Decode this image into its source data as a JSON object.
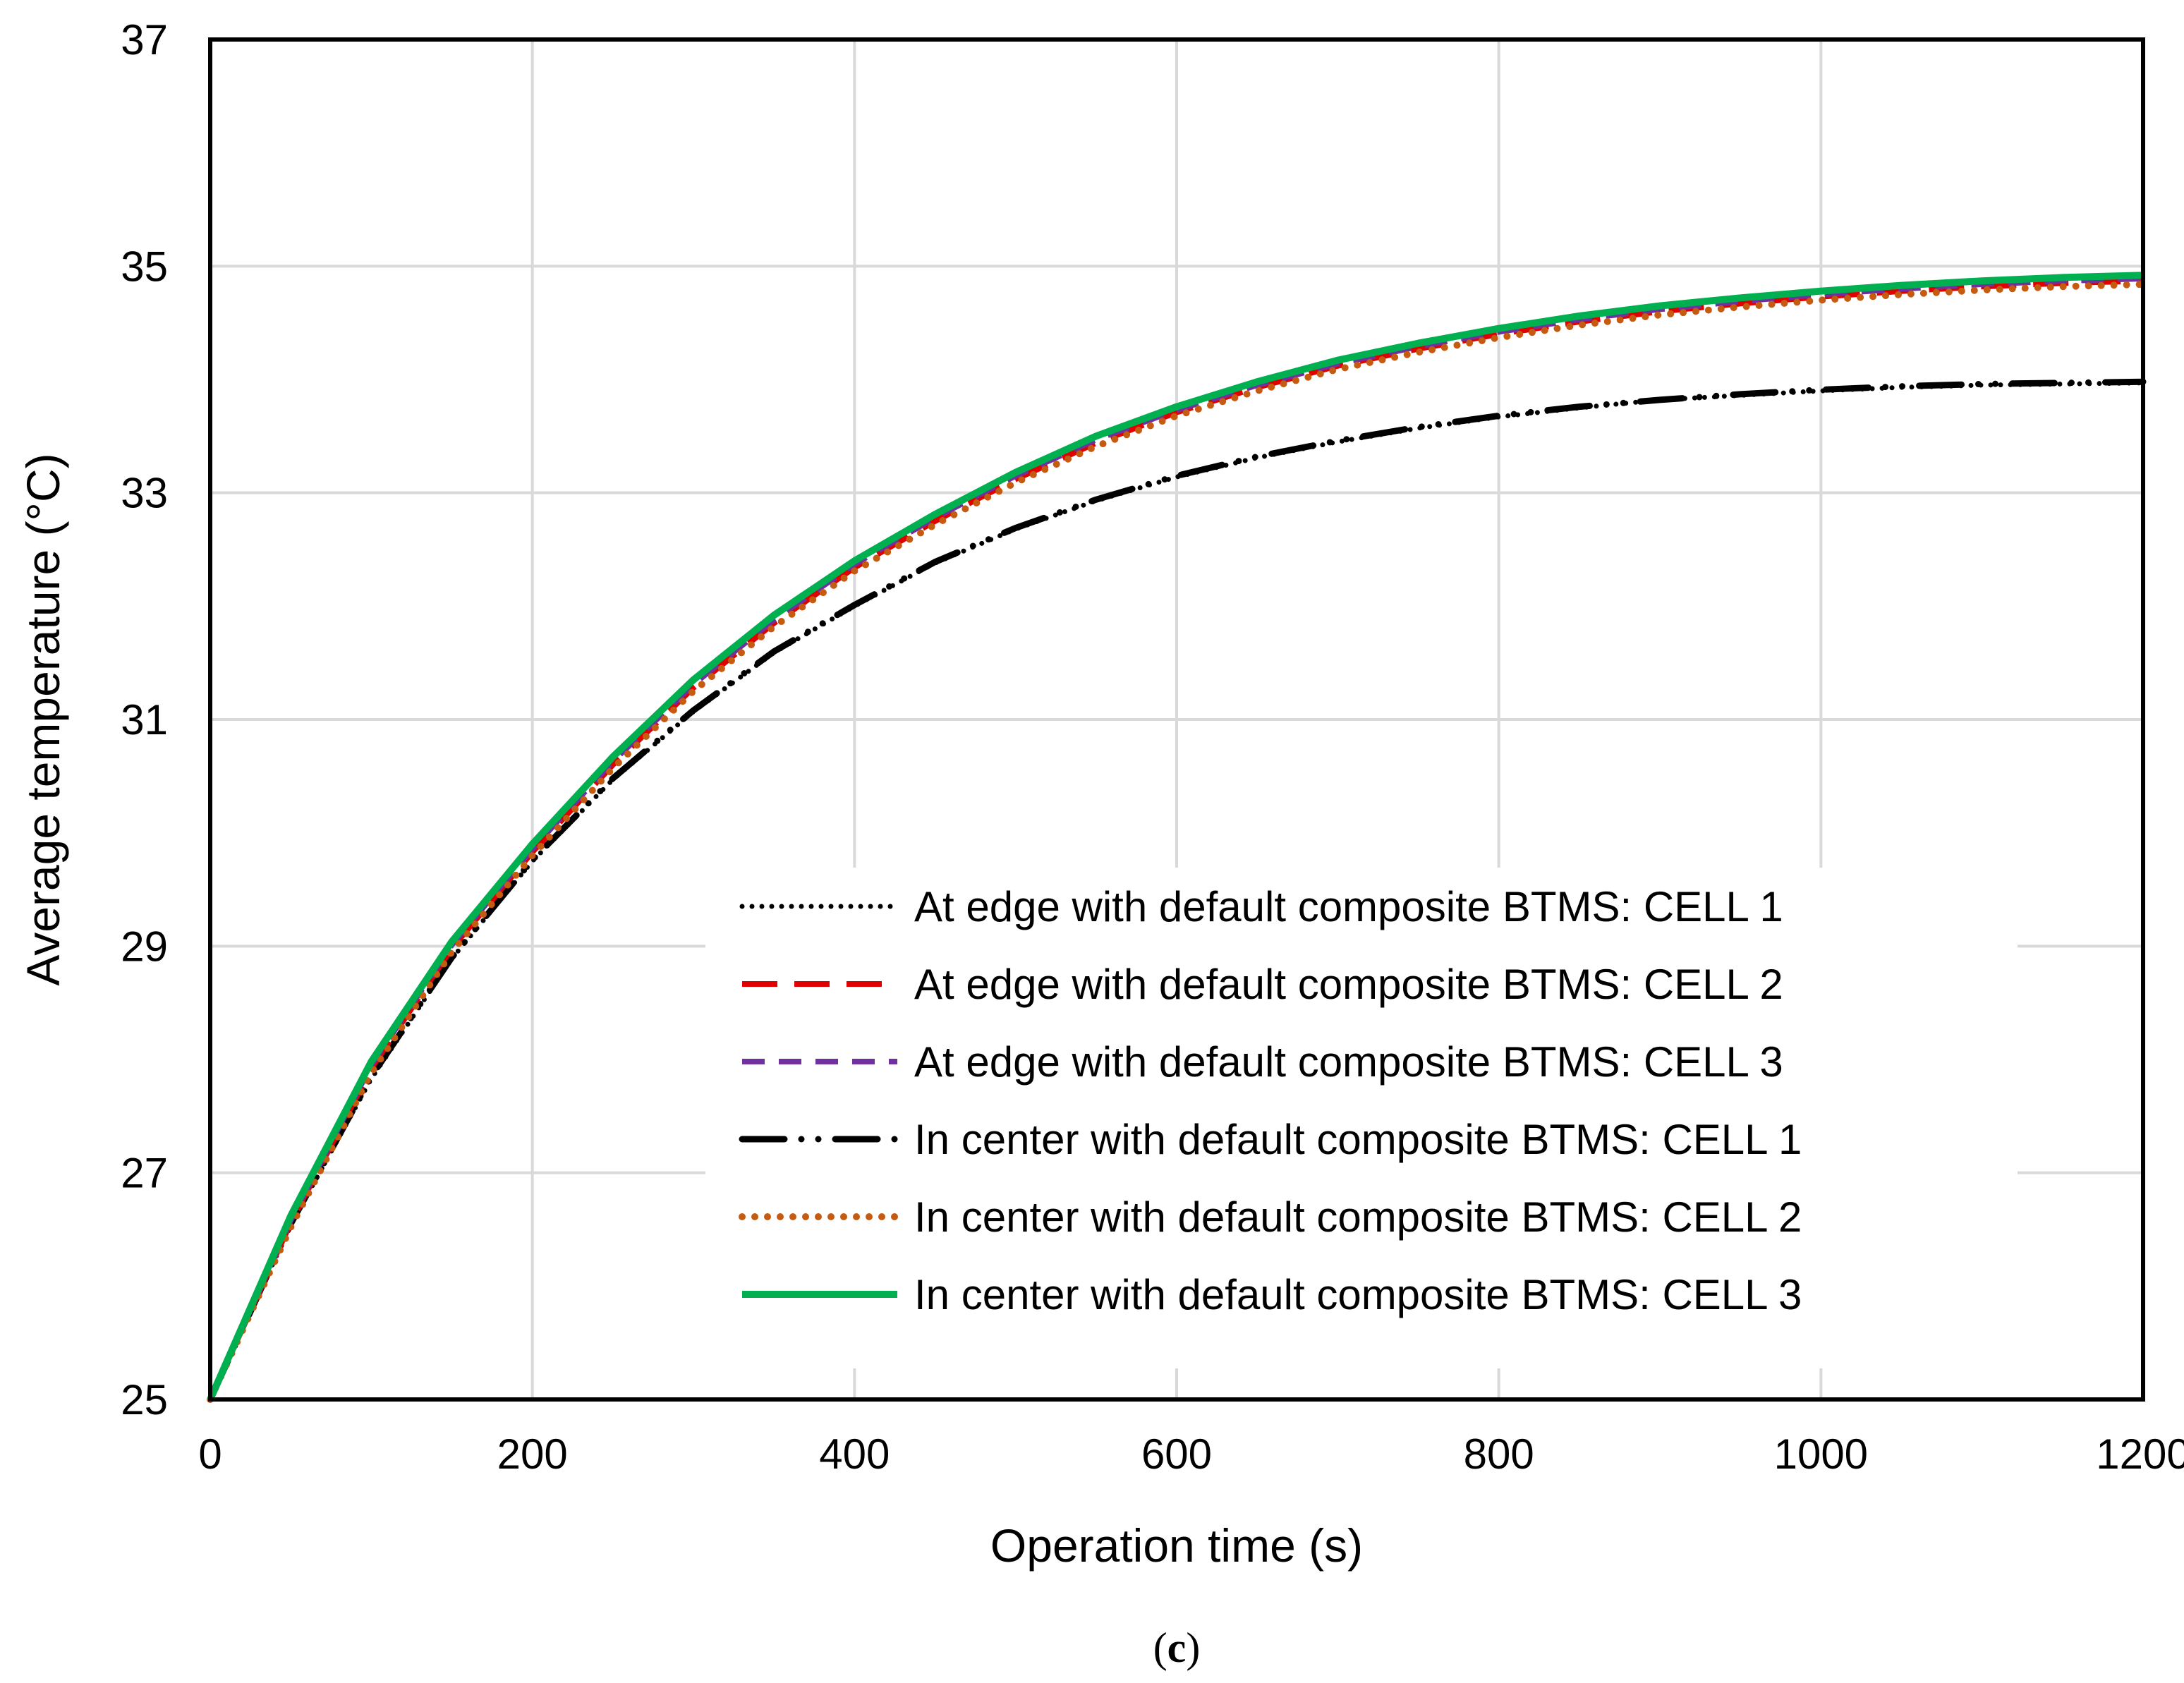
{
  "chart_data": {
    "type": "line",
    "xlabel": "Operation time (s)",
    "ylabel": "Average temperature (°C)",
    "xlim": [
      0,
      1200
    ],
    "ylim": [
      25,
      37
    ],
    "xticks": [
      0,
      200,
      400,
      600,
      800,
      1000,
      1200
    ],
    "yticks": [
      25,
      27,
      29,
      31,
      33,
      35,
      37
    ],
    "grid": true,
    "legend_position": "bottom-right",
    "caption_open": "(",
    "caption_letter": "c",
    "caption_close": ")",
    "series": [
      {
        "name": "At edge with default composite BTMS: CELL 1",
        "color": "#000000",
        "style": "dotted",
        "x": [
          0,
          50,
          100,
          150,
          200,
          250,
          300,
          350,
          400,
          450,
          500,
          550,
          600,
          650,
          700,
          750,
          800,
          850,
          900,
          950,
          1000,
          1050,
          1100,
          1150,
          1200
        ],
        "y": [
          25.0,
          26.54,
          27.83,
          28.89,
          29.75,
          30.47,
          31.07,
          31.59,
          32.0,
          32.38,
          32.68,
          32.93,
          33.14,
          33.31,
          33.45,
          33.57,
          33.67,
          33.75,
          33.82,
          33.86,
          33.9,
          33.93,
          33.95,
          33.96,
          33.97
        ]
      },
      {
        "name": "At edge with default composite BTMS: CELL 2",
        "color": "#e00000",
        "style": "long-dash",
        "x": [
          0,
          50,
          100,
          150,
          200,
          250,
          300,
          350,
          400,
          450,
          500,
          550,
          600,
          650,
          700,
          750,
          800,
          850,
          900,
          950,
          1000,
          1050,
          1100,
          1150,
          1200
        ],
        "y": [
          25.0,
          26.56,
          27.92,
          28.98,
          29.83,
          30.6,
          31.28,
          31.85,
          32.34,
          32.75,
          33.12,
          33.44,
          33.71,
          33.93,
          34.12,
          34.27,
          34.4,
          34.51,
          34.6,
          34.67,
          34.73,
          34.78,
          34.82,
          34.85,
          34.87
        ]
      },
      {
        "name": "At edge with default composite BTMS: CELL 3",
        "color": "#7030a0",
        "style": "dash",
        "x": [
          0,
          50,
          100,
          150,
          200,
          250,
          300,
          350,
          400,
          450,
          500,
          550,
          600,
          650,
          700,
          750,
          800,
          850,
          900,
          950,
          1000,
          1050,
          1100,
          1150,
          1200
        ],
        "y": [
          25.0,
          26.58,
          27.95,
          29.01,
          29.86,
          30.63,
          31.31,
          31.88,
          32.37,
          32.78,
          33.15,
          33.47,
          33.73,
          33.95,
          34.14,
          34.29,
          34.42,
          34.53,
          34.62,
          34.69,
          34.75,
          34.8,
          34.84,
          34.87,
          34.89
        ]
      },
      {
        "name": "In center with default composite BTMS: CELL 1",
        "color": "#000000",
        "style": "long-dash-dot-dot",
        "x": [
          0,
          50,
          100,
          150,
          200,
          250,
          300,
          350,
          400,
          450,
          500,
          550,
          600,
          650,
          700,
          750,
          800,
          850,
          900,
          950,
          1000,
          1050,
          1100,
          1150,
          1200
        ],
        "y": [
          25.0,
          26.55,
          27.85,
          28.9,
          29.76,
          30.48,
          31.08,
          31.6,
          32.01,
          32.39,
          32.69,
          32.94,
          33.15,
          33.32,
          33.46,
          33.58,
          33.68,
          33.76,
          33.82,
          33.87,
          33.91,
          33.94,
          33.96,
          33.97,
          33.98
        ]
      },
      {
        "name": "In center with default composite BTMS: CELL 2",
        "color": "#c55a11",
        "style": "round-dot",
        "x": [
          0,
          50,
          100,
          150,
          200,
          250,
          300,
          350,
          400,
          450,
          500,
          550,
          600,
          650,
          700,
          750,
          800,
          850,
          900,
          950,
          1000,
          1050,
          1100,
          1150,
          1200
        ],
        "y": [
          25.0,
          26.52,
          27.88,
          28.95,
          29.8,
          30.57,
          31.25,
          31.82,
          32.31,
          32.72,
          33.09,
          33.41,
          33.68,
          33.9,
          34.09,
          34.24,
          34.37,
          34.48,
          34.57,
          34.64,
          34.7,
          34.75,
          34.79,
          34.82,
          34.84
        ]
      },
      {
        "name": "In center with default composite BTMS: CELL 3",
        "color": "#00b050",
        "style": "solid",
        "x": [
          0,
          50,
          100,
          150,
          200,
          250,
          300,
          350,
          400,
          450,
          500,
          550,
          600,
          650,
          700,
          750,
          800,
          850,
          900,
          950,
          1000,
          1050,
          1100,
          1150,
          1200
        ],
        "y": [
          25.0,
          26.62,
          27.98,
          29.04,
          29.9,
          30.67,
          31.35,
          31.92,
          32.4,
          32.81,
          33.18,
          33.5,
          33.76,
          33.98,
          34.17,
          34.32,
          34.45,
          34.56,
          34.65,
          34.72,
          34.78,
          34.83,
          34.87,
          34.9,
          34.92
        ]
      }
    ]
  }
}
